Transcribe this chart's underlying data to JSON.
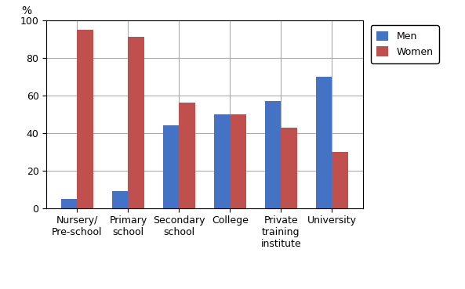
{
  "categories": [
    "Nursery/\nPre-school",
    "Primary\nschool",
    "Secondary\nschool",
    "College",
    "Private\ntraining\ninstitute",
    "University"
  ],
  "men_values": [
    5,
    9,
    44,
    50,
    57,
    70
  ],
  "women_values": [
    95,
    91,
    56,
    50,
    43,
    30
  ],
  "men_color": "#4472C4",
  "women_color": "#C0504D",
  "ylim": [
    0,
    100
  ],
  "yticks": [
    0,
    20,
    40,
    60,
    80,
    100
  ],
  "legend_labels": [
    "Men",
    "Women"
  ],
  "bar_width": 0.32,
  "tick_fontsize": 9,
  "legend_fontsize": 9,
  "percent_label": "%",
  "grid_color": "#AAAAAA",
  "background_color": "#FFFFFF"
}
